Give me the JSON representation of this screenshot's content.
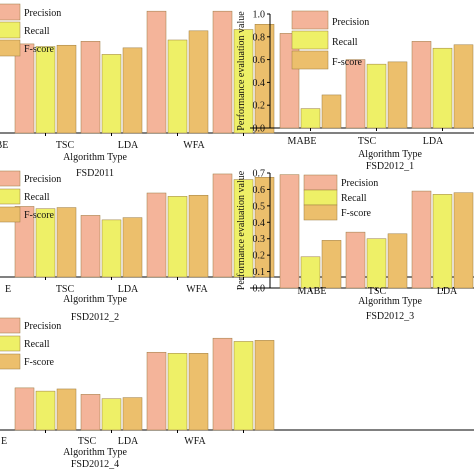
{
  "colors": {
    "precision": "#f4b49a",
    "recall": "#eef067",
    "fscore": "#ecbf6c",
    "axis": "#000000"
  },
  "chart_data": [
    {
      "type": "bar",
      "dataset": "FSD2011",
      "xlabel": "Algorithm Type",
      "ylabel": "",
      "categories": [
        "MABE",
        "TSC",
        "LDA",
        "WFA"
      ],
      "category_labels": [
        "BE",
        "TSC",
        "LDA",
        "WFA"
      ],
      "series": [
        {
          "name": "Precision",
          "values": [
            0.68,
            0.7,
            0.93,
            0.93
          ]
        },
        {
          "name": "Recall",
          "values": [
            0.66,
            0.6,
            0.71,
            0.79
          ]
        },
        {
          "name": "F-score",
          "values": [
            0.67,
            0.65,
            0.78,
            0.83
          ]
        }
      ],
      "ylim": [
        0,
        1.0
      ],
      "legend": "top-left"
    },
    {
      "type": "bar",
      "dataset": "FSD2012_1",
      "xlabel": "Algorithm Type",
      "ylabel": "Performance evaluation value",
      "categories": [
        "MABE",
        "TSC",
        "LDA"
      ],
      "series": [
        {
          "name": "Precision",
          "values": [
            0.83,
            0.6,
            0.76
          ]
        },
        {
          "name": "Recall",
          "values": [
            0.17,
            0.56,
            0.7
          ]
        },
        {
          "name": "F-score",
          "values": [
            0.29,
            0.58,
            0.73
          ]
        }
      ],
      "ylim": [
        0,
        1.0
      ],
      "yticks": [
        0.0,
        0.2,
        0.4,
        0.6,
        0.8,
        1.0
      ],
      "legend": "top-left"
    },
    {
      "type": "bar",
      "dataset": "FSD2012_2",
      "xlabel": "Algorithm Type",
      "ylabel": "",
      "categories": [
        "MABE",
        "TSC",
        "LDA",
        "WFA"
      ],
      "category_labels": [
        "E",
        "TSC",
        "LDA",
        "WFA"
      ],
      "series": [
        {
          "name": "Precision",
          "values": [
            0.63,
            0.55,
            0.75,
            0.92
          ]
        },
        {
          "name": "Recall",
          "values": [
            0.61,
            0.51,
            0.72,
            0.87
          ]
        },
        {
          "name": "F-score",
          "values": [
            0.62,
            0.53,
            0.73,
            0.89
          ]
        }
      ],
      "ylim": [
        0,
        1.0
      ],
      "legend": "top-left"
    },
    {
      "type": "bar",
      "dataset": "FSD2012_3",
      "xlabel": "Algorithm Type",
      "ylabel": "Performance evaluation value",
      "categories": [
        "MABE",
        "TSC",
        "LDA"
      ],
      "series": [
        {
          "name": "Precision",
          "values": [
            0.69,
            0.34,
            0.59
          ]
        },
        {
          "name": "Recall",
          "values": [
            0.19,
            0.3,
            0.57
          ]
        },
        {
          "name": "F-score",
          "values": [
            0.29,
            0.33,
            0.58
          ]
        }
      ],
      "ylim": [
        0,
        0.7
      ],
      "yticks": [
        0.0,
        0.1,
        0.2,
        0.3,
        0.4,
        0.5,
        0.6,
        0.7
      ],
      "legend": "top-left"
    },
    {
      "type": "bar",
      "dataset": "FSD2012_4",
      "xlabel": "Algorithm Type",
      "ylabel": "",
      "categories": [
        "MABE",
        "TSC",
        "LDA",
        "WFA"
      ],
      "category_labels": [
        "E",
        "TSC",
        "LDA",
        "WFA"
      ],
      "series": [
        {
          "name": "Precision",
          "values": [
            0.39,
            0.33,
            0.72,
            0.85
          ]
        },
        {
          "name": "Recall",
          "values": [
            0.36,
            0.29,
            0.71,
            0.82
          ]
        },
        {
          "name": "F-score",
          "values": [
            0.38,
            0.3,
            0.71,
            0.83
          ]
        }
      ],
      "ylim": [
        0,
        1.0
      ],
      "legend": "top-left"
    }
  ]
}
